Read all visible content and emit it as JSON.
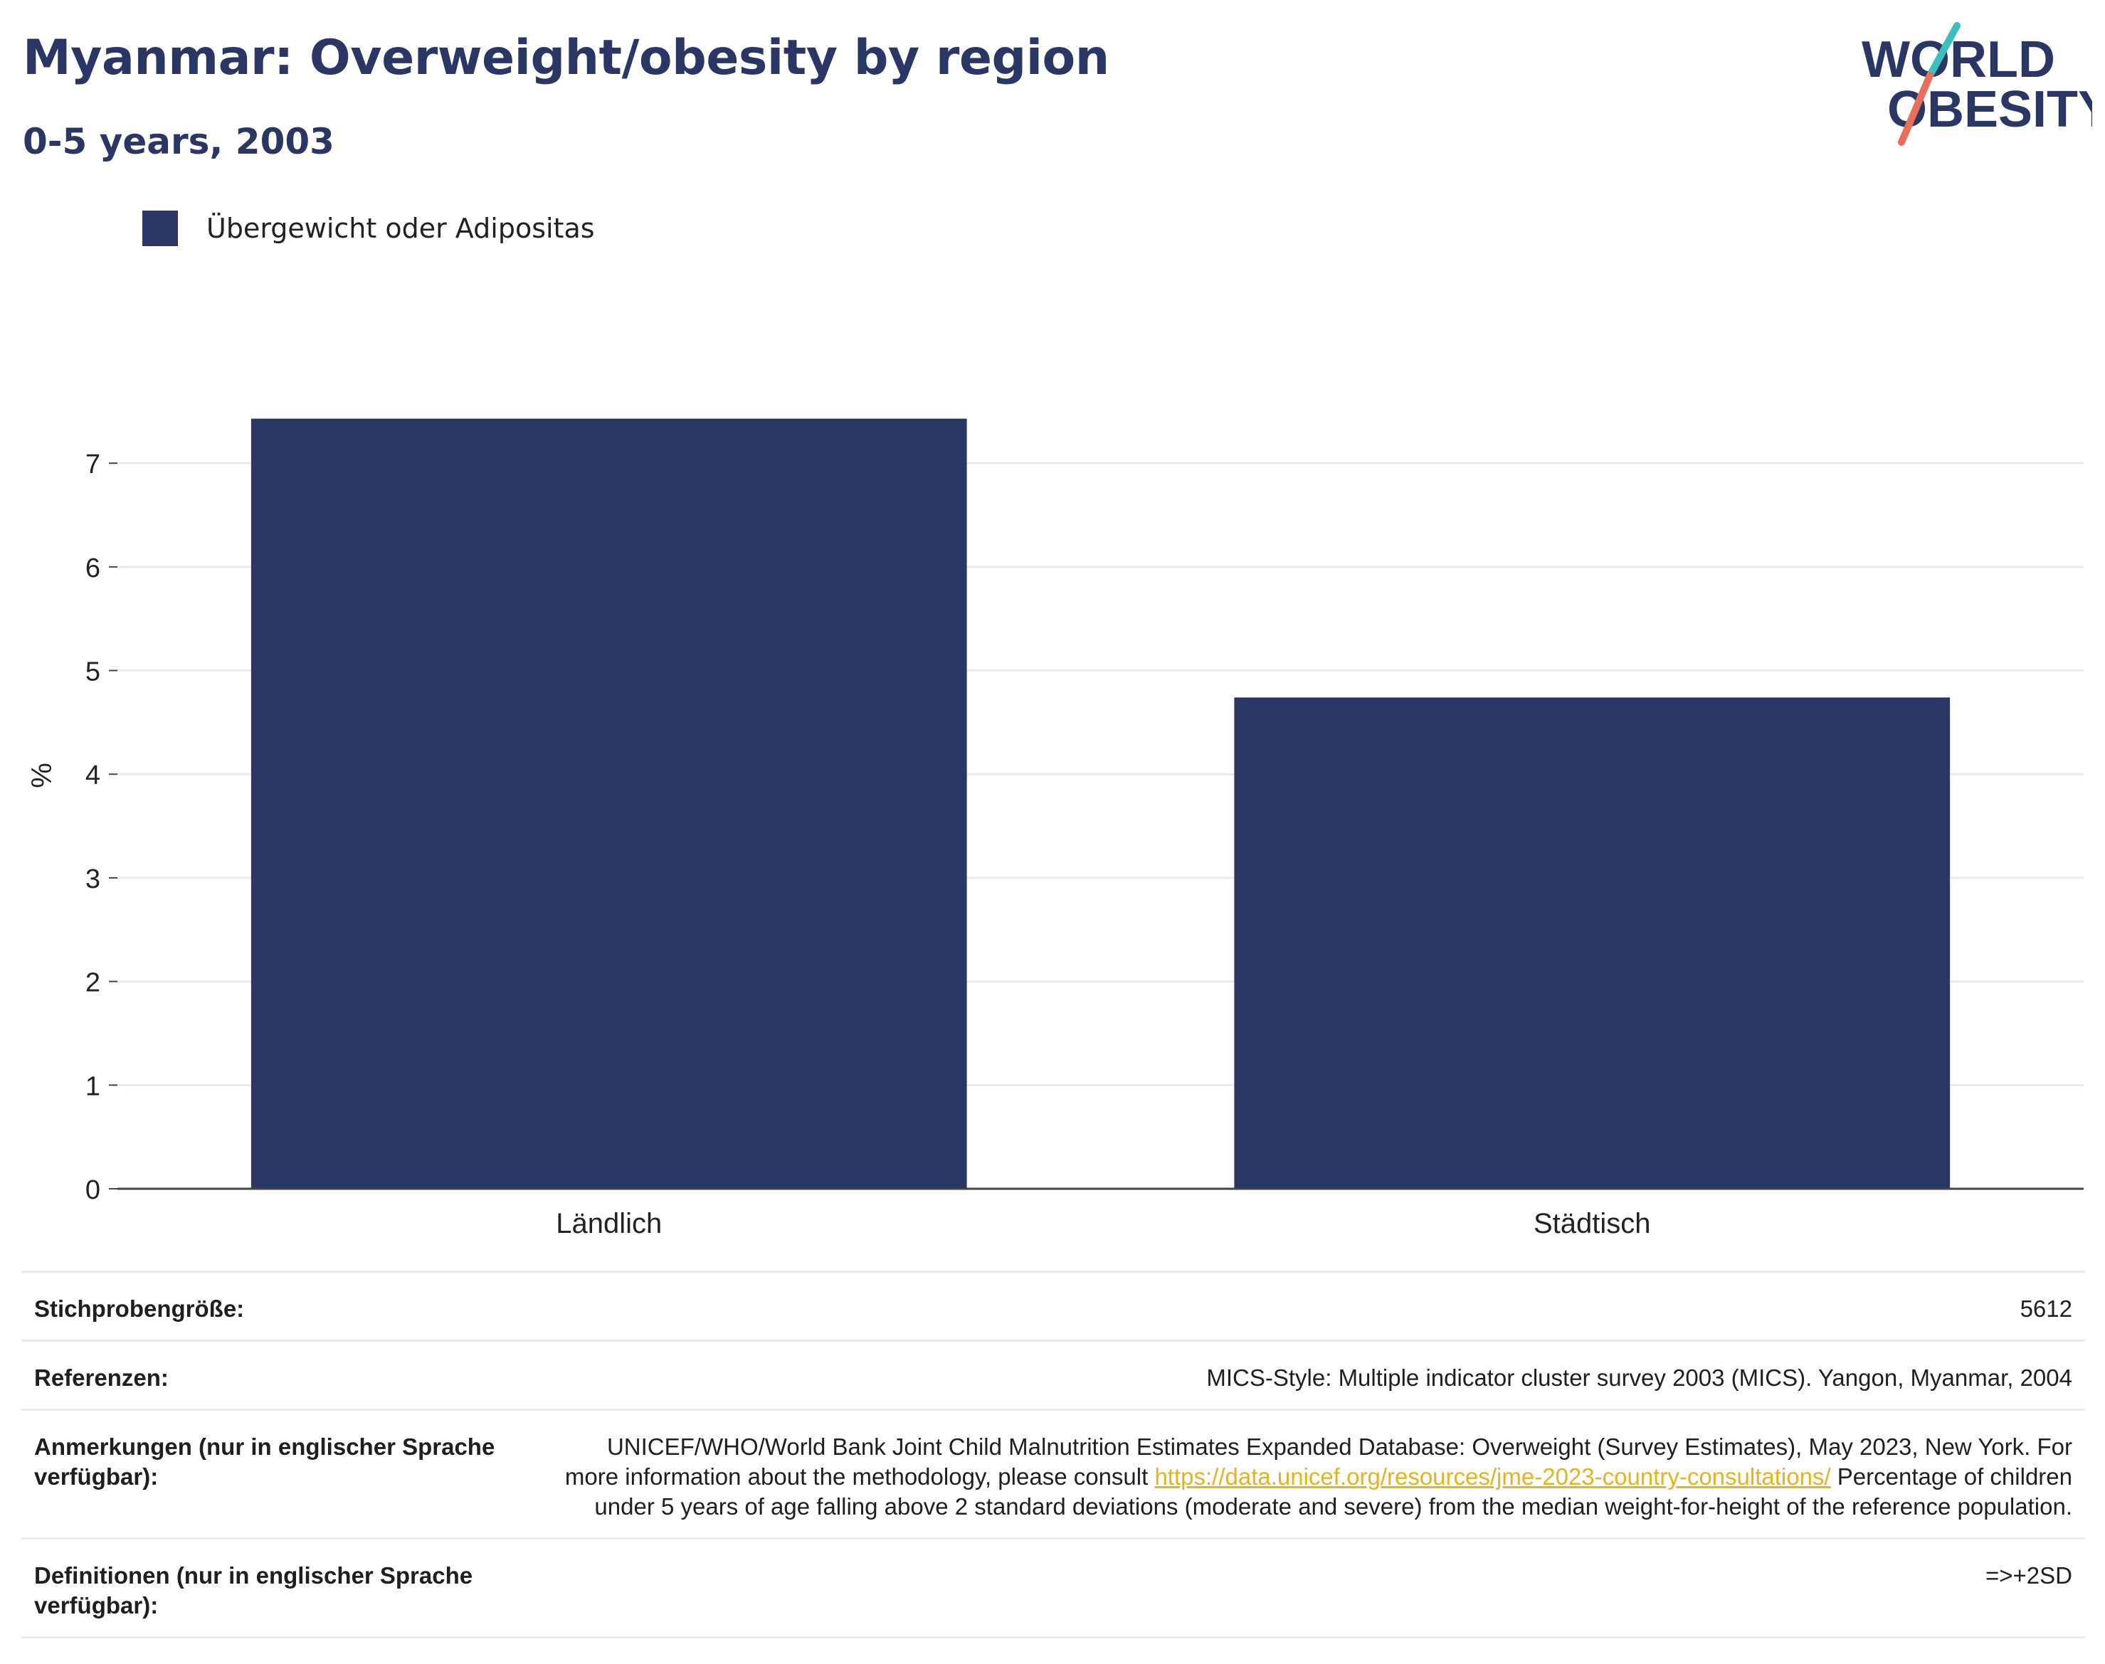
{
  "header": {
    "title": "Myanmar: Overweight/obesity by region",
    "subtitle": "0-5 years, 2003"
  },
  "logo": {
    "line1": "WORLD",
    "line2": "OBESITY",
    "colors": {
      "text": "#2a3663",
      "slash_top": "#3bbfbf",
      "slash_bottom": "#e8705a"
    }
  },
  "legend": {
    "label": "Übergewicht oder Adipositas",
    "color": "#2a3663"
  },
  "chart_data": {
    "type": "bar",
    "categories": [
      "Ländlich",
      "Städtisch"
    ],
    "series": [
      {
        "name": "Übergewicht oder Adipositas",
        "values": [
          7.43,
          4.74
        ]
      }
    ],
    "ylabel": "%",
    "xlabel": "",
    "ylim": [
      0,
      7.9
    ],
    "yticks": [
      0,
      1,
      2,
      3,
      4,
      5,
      6,
      7
    ],
    "grid": true,
    "legend_position": "top-left",
    "bar_color": "#2a3663"
  },
  "info": {
    "sample_label": "Stichprobengröße:",
    "sample_value": "5612",
    "references_label": "Referenzen:",
    "references_value": "MICS-Style: Multiple indicator cluster survey 2003 (MICS). Yangon, Myanmar, 2004",
    "notes_label": "Anmerkungen (nur in englischer Sprache verfügbar):",
    "notes_text1": "UNICEF/WHO/World Bank Joint Child Malnutrition Estimates Expanded Database: Overweight (Survey Estimates), May 2023, New York. For more information about the methodology, please consult ",
    "notes_link": "https://data.unicef.org/resources/jme-2023-country-consultations/",
    "notes_text2": "Percentage of children under 5 years of age falling above 2 standard deviations (moderate and severe) from the median weight-for-height of the reference population.",
    "definitions_label": "Definitionen (nur in englischer Sprache verfügbar):",
    "definitions_value": "=>+2SD"
  }
}
